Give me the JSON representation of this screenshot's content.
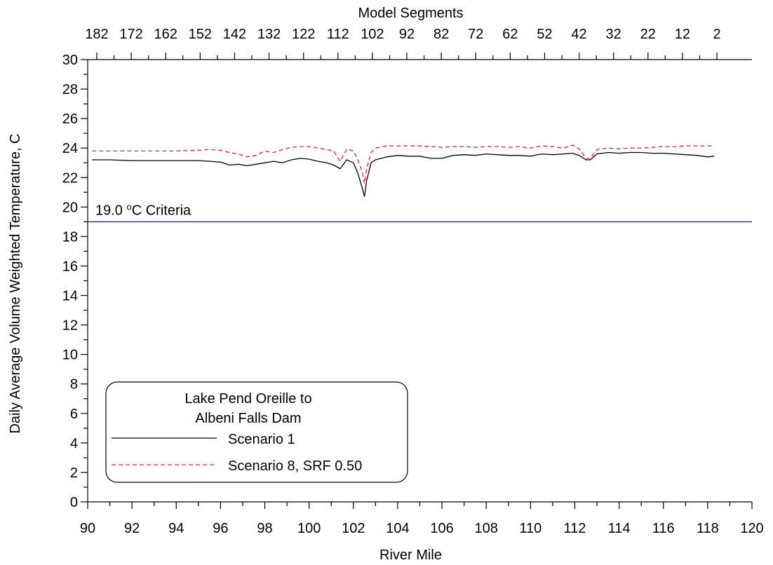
{
  "chart_data": {
    "type": "line",
    "xlabel": "River Mile",
    "ylabel": "Daily Average Volume Weighted Temperature, C",
    "top_axis_label": "Model Segments",
    "xlim": [
      90,
      120
    ],
    "ylim": [
      0,
      30
    ],
    "x_ticks": [
      90,
      92,
      94,
      96,
      98,
      100,
      102,
      104,
      106,
      108,
      110,
      112,
      114,
      116,
      118,
      120
    ],
    "y_ticks": [
      0,
      2,
      4,
      6,
      8,
      10,
      12,
      14,
      16,
      18,
      20,
      22,
      24,
      26,
      28,
      30
    ],
    "top_ticks": [
      {
        "label": "182",
        "river_mile": 90.4
      },
      {
        "label": "172",
        "river_mile": 92.4
      },
      {
        "label": "162",
        "river_mile": 94.4
      },
      {
        "label": "152",
        "river_mile": 96.4
      },
      {
        "label": "142",
        "river_mile": 98.4
      },
      {
        "label": "132",
        "river_mile": 100.4
      },
      {
        "label": "122",
        "river_mile": 102.4
      },
      {
        "label": "112",
        "river_mile": 104.4
      },
      {
        "label": "102",
        "river_mile": 106.4
      },
      {
        "label": "92",
        "river_mile": 108.4
      },
      {
        "label": "82",
        "river_mile": 110.4
      },
      {
        "label": "72",
        "river_mile": 112.4
      },
      {
        "label": "62",
        "river_mile": 114.4
      },
      {
        "label": "52",
        "river_mile": 116.4
      },
      {
        "label": "42",
        "river_mile": 118.4
      },
      {
        "label": "32",
        "river_mile": 120.4
      },
      {
        "label": "22",
        "river_mile": 122.4
      },
      {
        "label": "12",
        "river_mile": 124.4
      },
      {
        "label": "2",
        "river_mile": 126.4
      }
    ],
    "criteria": {
      "value": 19.0,
      "label_prefix": "19.0 ",
      "label_super": "o",
      "label_suffix": "C Criteria",
      "color": "#1a1aa0"
    },
    "legend": {
      "title_line1": "Lake Pend Oreille to",
      "title_line2": "Albeni Falls Dam",
      "placement": "bottom-left"
    },
    "series": [
      {
        "name": "Scenario 1",
        "color": "#000000",
        "dash": "solid",
        "x": [
          90.2,
          91.0,
          92.0,
          93.0,
          94.0,
          95.0,
          95.5,
          96.0,
          96.4,
          96.8,
          97.2,
          97.6,
          98.0,
          98.4,
          98.8,
          99.2,
          99.6,
          100.0,
          100.4,
          100.8,
          101.1,
          101.4,
          101.7,
          102.0,
          102.2,
          102.4,
          102.5,
          102.6,
          102.8,
          103.0,
          103.5,
          104.0,
          104.5,
          105.0,
          105.5,
          106.0,
          106.5,
          107.0,
          107.5,
          108.0,
          108.5,
          109.0,
          109.5,
          110.0,
          110.5,
          111.0,
          111.5,
          111.9,
          112.2,
          112.5,
          112.7,
          113.0,
          113.5,
          114.0,
          114.5,
          115.0,
          115.5,
          116.0,
          116.5,
          117.0,
          117.5,
          118.0,
          118.3
        ],
        "values": [
          23.2,
          23.2,
          23.15,
          23.15,
          23.15,
          23.15,
          23.1,
          23.05,
          22.85,
          22.9,
          22.8,
          22.9,
          23.0,
          23.1,
          23.0,
          23.2,
          23.3,
          23.25,
          23.1,
          23.0,
          22.85,
          22.6,
          23.2,
          23.0,
          22.3,
          21.3,
          20.7,
          21.8,
          23.0,
          23.2,
          23.4,
          23.5,
          23.45,
          23.45,
          23.3,
          23.3,
          23.5,
          23.55,
          23.5,
          23.6,
          23.55,
          23.5,
          23.5,
          23.45,
          23.6,
          23.55,
          23.6,
          23.65,
          23.5,
          23.2,
          23.2,
          23.6,
          23.7,
          23.65,
          23.7,
          23.7,
          23.65,
          23.65,
          23.6,
          23.55,
          23.5,
          23.4,
          23.45
        ]
      },
      {
        "name": "Scenario 8, SRF 0.50",
        "color": "#e8262a",
        "dash": "dashed",
        "x": [
          90.2,
          91.0,
          92.0,
          93.0,
          94.0,
          95.0,
          95.5,
          96.0,
          96.4,
          96.8,
          97.2,
          97.6,
          98.0,
          98.4,
          98.8,
          99.2,
          99.6,
          100.0,
          100.4,
          100.8,
          101.1,
          101.4,
          101.7,
          102.0,
          102.2,
          102.4,
          102.5,
          102.6,
          102.8,
          103.0,
          103.5,
          104.0,
          104.5,
          105.0,
          105.5,
          106.0,
          106.5,
          107.0,
          107.5,
          108.0,
          108.5,
          109.0,
          109.5,
          110.0,
          110.5,
          111.0,
          111.5,
          111.9,
          112.2,
          112.5,
          112.7,
          113.0,
          113.5,
          114.0,
          114.5,
          115.0,
          115.5,
          116.0,
          116.5,
          117.0,
          117.5,
          118.0,
          118.3
        ],
        "values": [
          23.8,
          23.8,
          23.8,
          23.8,
          23.8,
          23.85,
          23.9,
          23.85,
          23.7,
          23.6,
          23.4,
          23.5,
          23.8,
          23.7,
          23.9,
          24.05,
          24.1,
          24.1,
          24.0,
          23.9,
          23.8,
          23.1,
          23.95,
          23.8,
          23.2,
          22.4,
          21.6,
          22.6,
          23.7,
          24.0,
          24.15,
          24.15,
          24.15,
          24.15,
          24.1,
          24.05,
          24.1,
          24.1,
          24.05,
          24.1,
          24.1,
          24.05,
          24.1,
          24.0,
          24.15,
          24.1,
          24.0,
          24.2,
          23.95,
          23.3,
          23.3,
          23.9,
          24.0,
          23.95,
          24.0,
          24.0,
          24.05,
          24.1,
          24.1,
          24.15,
          24.15,
          24.15,
          24.15
        ]
      }
    ]
  }
}
